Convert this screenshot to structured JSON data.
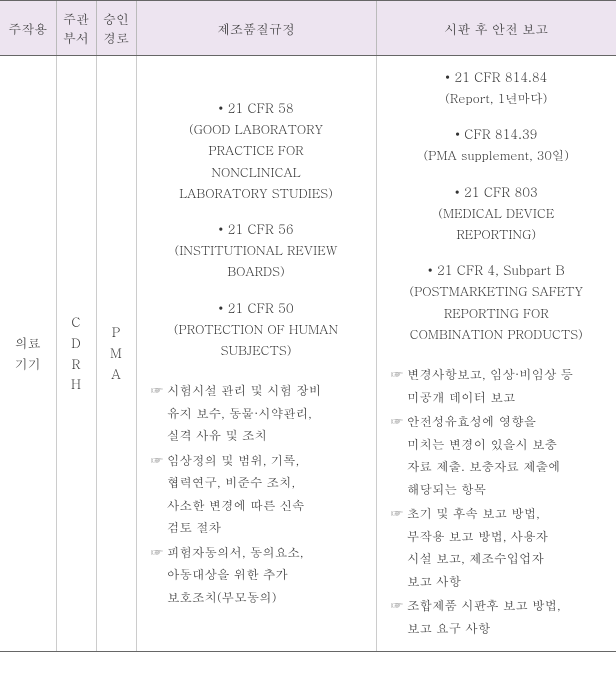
{
  "headers": {
    "col1": "주작용",
    "col2_line1": "주관",
    "col2_line2": "부서",
    "col3_line1": "승인",
    "col3_line2": "경로",
    "col4": "제조품질규정",
    "col5": "시판 후 안전 보고"
  },
  "row": {
    "col1_line1": "의료",
    "col1_line2": "기기",
    "col2_c1": "C",
    "col2_c2": "D",
    "col2_c3": "R",
    "col2_c4": "H",
    "col3_c1": "P",
    "col3_c2": "M",
    "col3_c3": "A"
  },
  "col4_blocks": {
    "b1_title": "• 21 CFR 58",
    "b1_l1": "(GOOD LABORATORY",
    "b1_l2": "PRACTICE FOR",
    "b1_l3": "NONCLINICAL",
    "b1_l4": "LABORATORY STUDIES)",
    "b2_title": "• 21 CFR 56",
    "b2_l1": "(INSTITUTIONAL REVIEW",
    "b2_l2": "BOARDS)",
    "b3_title": "• 21 CFR 50",
    "b3_l1": "(PROTECTION OF HUMAN",
    "b3_l2": "SUBJECTS)"
  },
  "col4_notes": {
    "n1_l1": "시험시설 관리 및 시험 장비",
    "n1_l2": "유지 보수, 동물·시약관리,",
    "n1_l3": "실격 사유 및 조치",
    "n2_l1": "임상정의 및 범위, 기록,",
    "n2_l2": "협력연구, 비준수 조치,",
    "n2_l3": "사소한 변경에 따른 신속",
    "n2_l4": "검토 절차",
    "n3_l1": "피험자동의서, 동의요소,",
    "n3_l2": "아동대상을 위한 추가",
    "n3_l3": "보호조치(부모동의)"
  },
  "col5_blocks": {
    "b1_title": "• 21 CFR 814.84",
    "b1_l1": "(Report, 1년마다)",
    "b2_title": "• CFR 814.39",
    "b2_l1": "(PMA supplement, 30일)",
    "b3_title": "• 21 CFR 803",
    "b3_l1": "(MEDICAL DEVICE",
    "b3_l2": "REPORTING)",
    "b4_title": "• 21 CFR 4, Subpart B",
    "b4_l1": "(POSTMARKETING SAFETY",
    "b4_l2": "REPORTING FOR",
    "b4_l3": "COMBINATION PRODUCTS)"
  },
  "col5_notes": {
    "n1_l1": "변경사항보고, 임상·비임상 등",
    "n1_l2": "미공개 데이터 보고",
    "n2_l1": "안전성유효성에 영향을",
    "n2_l2": "미치는 변경이 있을시 보충",
    "n2_l3": "자료 제출. 보충자료 제출에",
    "n2_l4": "해당되는 항목",
    "n3_l1": "초기 및 후속 보고 방법,",
    "n3_l2": "부작용 보고 방법, 사용자",
    "n3_l3": "시설 보고, 제조수입업자",
    "n3_l4": "보고 사항",
    "n4_l1": "조합제품 시판후 보고 방법,",
    "n4_l2": "보고 요구 사항"
  },
  "marker": "☞"
}
